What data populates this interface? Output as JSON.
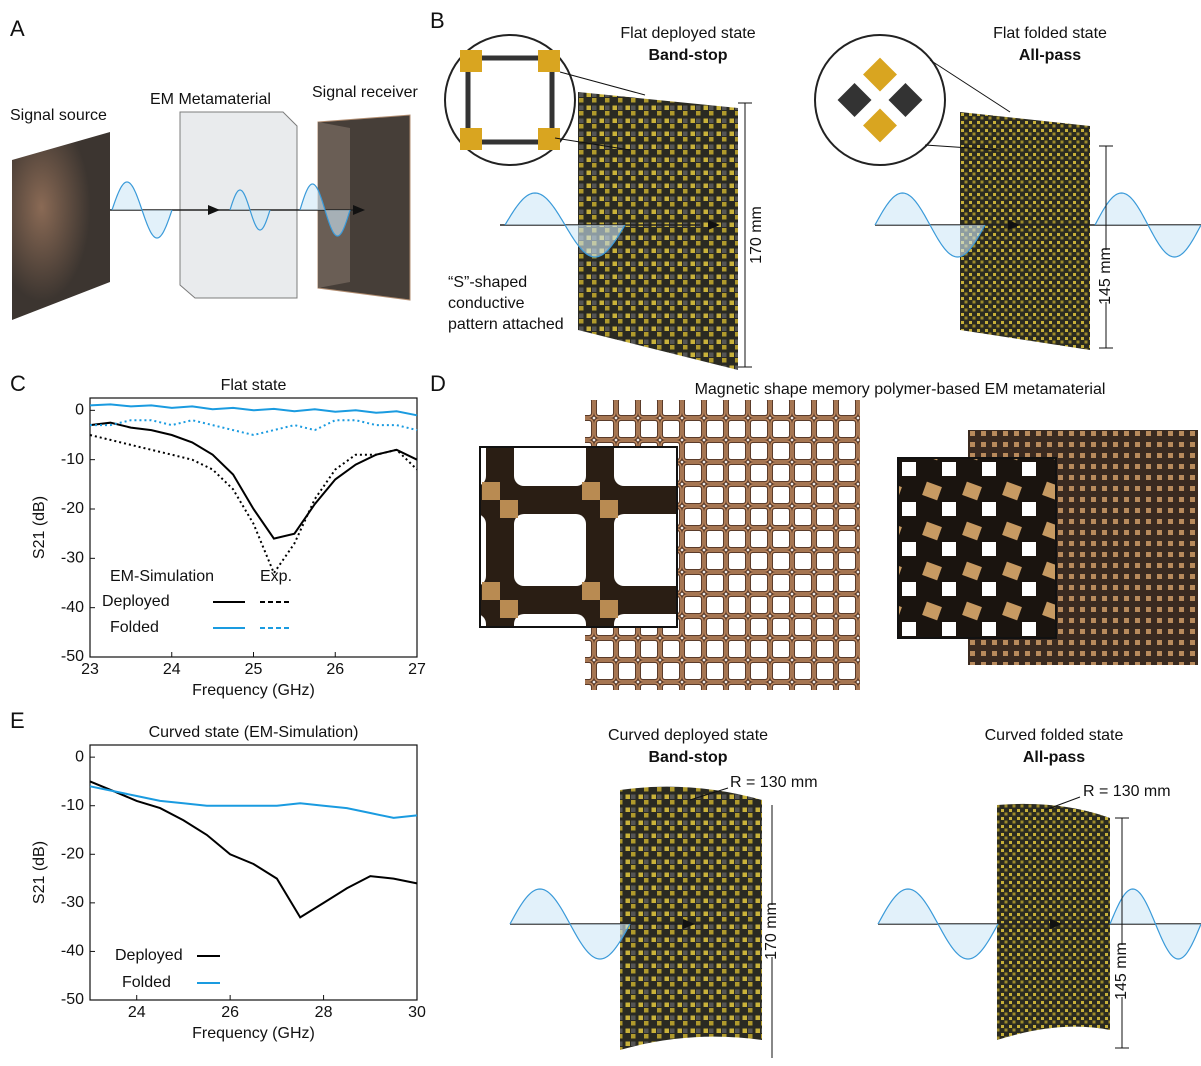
{
  "panels": {
    "A": {
      "letter": "A",
      "signal_source": "Signal source",
      "metamaterial": "EM Metamaterial",
      "signal_receiver": "Signal receiver"
    },
    "B": {
      "letter": "B",
      "deployed_title": "Flat deployed state",
      "deployed_mode": "Band-stop",
      "deployed_height": "170 mm",
      "pattern_note": [
        "“S”-shaped",
        "conductive",
        "pattern attached"
      ],
      "folded_title": "Flat folded state",
      "folded_mode": "All-pass",
      "folded_height": "145 mm"
    },
    "C": {
      "letter": "C"
    },
    "D": {
      "letter": "D",
      "title": "Magnetic shape memory polymer-based EM metamaterial"
    },
    "E": {
      "letter": "E",
      "deployed_title": "Curved deployed state",
      "deployed_mode": "Band-stop",
      "deployed_radius": "R = 130 mm",
      "deployed_height": "170 mm",
      "folded_title": "Curved folded state",
      "folded_mode": "All-pass",
      "folded_radius": "R = 130 mm",
      "folded_height": "145 mm"
    }
  },
  "chart_data": [
    {
      "type": "line",
      "title": "Flat state",
      "xlabel": "Frequency (GHz)",
      "ylabel": "S21 (dB)",
      "x": [
        23,
        23.25,
        23.5,
        23.75,
        24,
        24.25,
        24.5,
        24.75,
        25,
        25.25,
        25.5,
        25.75,
        26,
        26.25,
        26.5,
        26.75,
        27
      ],
      "xlim": [
        23,
        27
      ],
      "xticks": [
        23,
        24,
        25,
        26,
        27
      ],
      "ylim": [
        -50,
        2.5
      ],
      "yticks": [
        0,
        -10,
        -20,
        -30,
        -40,
        -50
      ],
      "legend": "lower left",
      "series": [
        {
          "name": "Deployed",
          "source": "EM-Simulation",
          "color": "#000000",
          "dash": "solid",
          "values": [
            -3,
            -2.5,
            -3.5,
            -4,
            -5,
            -6.5,
            -9,
            -13,
            -20,
            -26,
            -25,
            -19,
            -14,
            -11,
            -9,
            -8,
            -10
          ]
        },
        {
          "name": "Deployed",
          "source": "Exp.",
          "color": "#000000",
          "dash": "dotted",
          "values": [
            -5,
            -6,
            -7,
            -8,
            -9,
            -10,
            -12,
            -16,
            -23,
            -33,
            -27,
            -18,
            -12,
            -9,
            -9,
            -8,
            -12
          ]
        },
        {
          "name": "Folded",
          "source": "EM-Simulation",
          "color": "#1a9be0",
          "dash": "solid",
          "values": [
            1,
            1.2,
            0.8,
            1,
            0.5,
            0.8,
            0.2,
            0.5,
            0,
            0.3,
            -0.2,
            0.2,
            -0.3,
            0,
            -0.5,
            -0.2,
            -1
          ]
        },
        {
          "name": "Folded",
          "source": "Exp.",
          "color": "#1a9be0",
          "dash": "dotted",
          "values": [
            -3,
            -3,
            -2,
            -2,
            -3,
            -2,
            -3,
            -4,
            -5,
            -4,
            -3,
            -4,
            -2,
            -2,
            -3,
            -3,
            -4
          ]
        }
      ]
    },
    {
      "type": "line",
      "title": "Curved state (EM-Simulation)",
      "xlabel": "Frequency (GHz)",
      "ylabel": "S21 (dB)",
      "x": [
        23,
        23.5,
        24,
        24.5,
        25,
        25.5,
        26,
        26.5,
        27,
        27.5,
        28,
        28.5,
        29,
        29.5,
        30
      ],
      "xlim": [
        23,
        30
      ],
      "xticks": [
        24,
        26,
        28,
        30
      ],
      "ylim": [
        -50,
        2.5
      ],
      "yticks": [
        0,
        -10,
        -20,
        -30,
        -40,
        -50
      ],
      "legend": "lower left",
      "series": [
        {
          "name": "Deployed",
          "color": "#000000",
          "dash": "solid",
          "values": [
            -5,
            -7,
            -9,
            -10.5,
            -13,
            -16,
            -20,
            -22,
            -25,
            -33,
            -30,
            -27,
            -24.5,
            -25,
            -26
          ]
        },
        {
          "name": "Folded",
          "color": "#1a9be0",
          "dash": "solid",
          "values": [
            -6,
            -7,
            -8,
            -9,
            -9.5,
            -10,
            -10,
            -10,
            -10,
            -9.5,
            -10,
            -10.5,
            -11.5,
            -12.5,
            -12
          ]
        }
      ]
    }
  ]
}
